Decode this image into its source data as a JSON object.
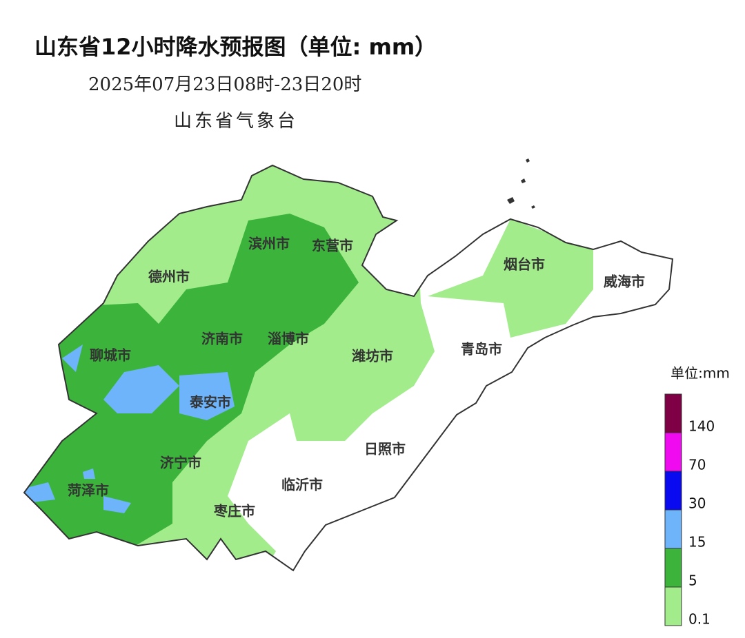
{
  "header": {
    "title": "山东省12小时降水预报图（单位: mm）",
    "date_range": "2025年07月23日08时-23日20时",
    "issuer": "山东省气象台"
  },
  "cities": [
    {
      "label": "滨州市"
    },
    {
      "label": "东营市"
    },
    {
      "label": "德州市"
    },
    {
      "label": "烟台市"
    },
    {
      "label": "威海市"
    },
    {
      "label": "济南市"
    },
    {
      "label": "淄博市"
    },
    {
      "label": "聊城市"
    },
    {
      "label": "潍坊市"
    },
    {
      "label": "青岛市"
    },
    {
      "label": "泰安市"
    },
    {
      "label": "日照市"
    },
    {
      "label": "济宁市"
    },
    {
      "label": "菏泽市"
    },
    {
      "label": "临沂市"
    },
    {
      "label": "枣庄市"
    }
  ],
  "legend": {
    "title": "单位:mm",
    "thresholds": [
      0.1,
      5,
      15,
      30,
      70,
      140
    ],
    "colors": [
      "#a2ec8c",
      "#3cb43c",
      "#6eb4fa",
      "#0a0af0",
      "#f00af0",
      "#800046"
    ]
  }
}
